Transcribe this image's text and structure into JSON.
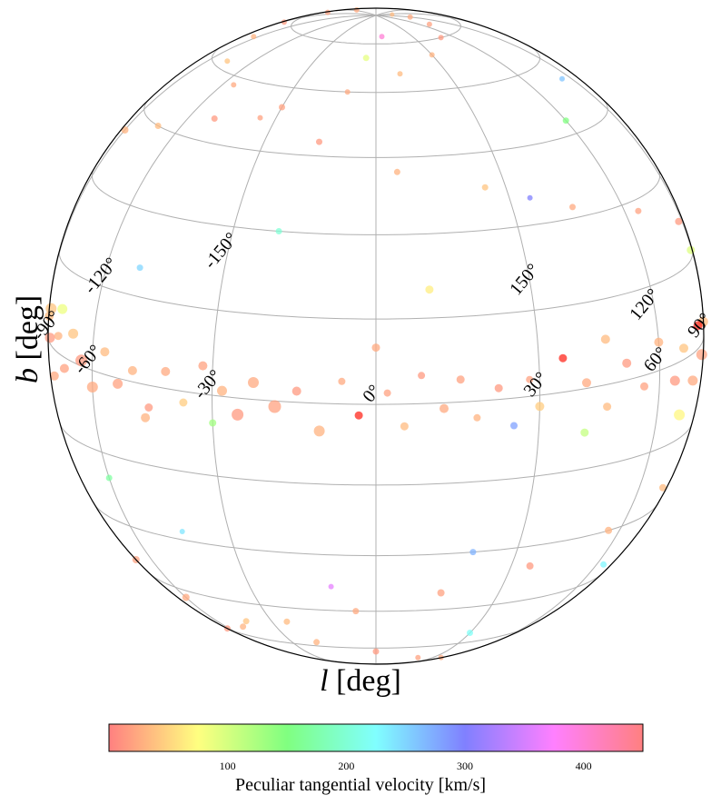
{
  "chart_data": {
    "type": "scatter",
    "projection": "orthographic sky map",
    "xlabel": {
      "symbol": "l",
      "unit": "[deg]"
    },
    "ylabel": {
      "symbol": "b",
      "unit": "[deg]"
    },
    "longitude_ticks": [
      "-150°",
      "-120°",
      "-90°",
      "-60°",
      "-30°",
      "0°",
      "30°",
      "60°",
      "90°",
      "120°",
      "150°"
    ],
    "longitude_values": [
      -150,
      -120,
      -90,
      -60,
      -30,
      0,
      30,
      60,
      90,
      120,
      150
    ],
    "latitude_gridlines": [
      -75,
      -60,
      -45,
      -30,
      -15,
      0,
      15,
      30,
      45,
      60,
      75
    ],
    "grid": true,
    "colorbar": {
      "label": "Peculiar tangential velocity [km/s]",
      "range": [
        0,
        450
      ],
      "ticks": [
        "100",
        "200",
        "300",
        "400"
      ],
      "tick_values": [
        100,
        200,
        300,
        400
      ],
      "colormap": [
        "#ff8080",
        "#ffff80",
        "#80ff80",
        "#80ffff",
        "#8080ff",
        "#ff80ff",
        "#ff8080"
      ]
    },
    "points": [
      [
        175,
        5,
        20,
        16
      ],
      [
        172,
        -8,
        25,
        15
      ],
      [
        168,
        3,
        15,
        14
      ],
      [
        165,
        -3,
        30,
        16
      ],
      [
        162,
        8,
        20,
        13
      ],
      [
        158,
        -6,
        10,
        15
      ],
      [
        155,
        2,
        35,
        14
      ],
      [
        150,
        -10,
        25,
        12
      ],
      [
        147,
        5,
        15,
        13
      ],
      [
        144,
        -2,
        40,
        14
      ],
      [
        140,
        7,
        20,
        12
      ],
      [
        136,
        -5,
        30,
        13
      ],
      [
        132,
        3,
        10,
        14
      ],
      [
        128,
        -8,
        25,
        12
      ],
      [
        124,
        1,
        20,
        13
      ],
      [
        120,
        6,
        35,
        12
      ],
      [
        116,
        -3,
        15,
        13
      ],
      [
        112,
        4,
        45,
        12
      ],
      [
        108,
        -6,
        20,
        11
      ],
      [
        104,
        2,
        30,
        13
      ],
      [
        100,
        -1,
        60,
        18
      ],
      [
        96,
        5,
        25,
        12
      ],
      [
        92,
        -4,
        15,
        13
      ],
      [
        88,
        3,
        35,
        11
      ],
      [
        84,
        -2,
        20,
        12
      ],
      [
        80,
        4,
        10,
        10
      ],
      [
        76,
        -5,
        25,
        11
      ],
      [
        70,
        2,
        40,
        10
      ],
      [
        66,
        -3,
        15,
        11
      ],
      [
        60,
        5,
        30,
        10
      ],
      [
        55,
        -2,
        20,
        9
      ],
      [
        50,
        3,
        15,
        10
      ],
      [
        45,
        -4,
        35,
        9
      ],
      [
        40,
        1,
        25,
        10
      ],
      [
        35,
        6,
        10,
        9
      ],
      [
        30,
        -2,
        45,
        10
      ],
      [
        28,
        3,
        20,
        8
      ],
      [
        25,
        -5,
        280,
        8
      ],
      [
        22,
        2,
        15,
        9
      ],
      [
        18,
        -3,
        30,
        8
      ],
      [
        15,
        4,
        20,
        9
      ],
      [
        12,
        -1,
        25,
        10
      ],
      [
        8,
        5,
        15,
        8
      ],
      [
        5,
        -4,
        35,
        9
      ],
      [
        2,
        2,
        20,
        8
      ],
      [
        -3,
        -2,
        10,
        9
      ],
      [
        -6,
        4,
        25,
        8
      ],
      [
        -10,
        -5,
        30,
        12
      ],
      [
        -14,
        2,
        15,
        10
      ],
      [
        -18,
        -1,
        20,
        14
      ],
      [
        -22,
        3,
        25,
        12
      ],
      [
        -25,
        -3,
        15,
        13
      ],
      [
        -28,
        1,
        30,
        11
      ],
      [
        -32,
        5,
        20,
        10
      ],
      [
        -36,
        -2,
        45,
        9
      ],
      [
        -40,
        3,
        25,
        10
      ],
      [
        -44,
        -4,
        15,
        9
      ],
      [
        -48,
        2,
        30,
        10
      ],
      [
        -52,
        -1,
        20,
        11
      ],
      [
        -56,
        4,
        35,
        10
      ],
      [
        -60,
        -3,
        25,
        12
      ],
      [
        -64,
        1,
        15,
        13
      ],
      [
        -68,
        5,
        40,
        11
      ],
      [
        -72,
        -2,
        20,
        10
      ],
      [
        -76,
        3,
        30,
        9
      ],
      [
        -80,
        -5,
        25,
        10
      ],
      [
        -84,
        1,
        15,
        11
      ],
      [
        -88,
        4,
        35,
        10
      ],
      [
        -92,
        -2,
        20,
        9
      ],
      [
        -96,
        3,
        30,
        10
      ],
      [
        -100,
        -4,
        25,
        11
      ],
      [
        -104,
        2,
        15,
        12
      ],
      [
        -108,
        -1,
        45,
        10
      ],
      [
        -112,
        5,
        20,
        11
      ],
      [
        -116,
        -3,
        30,
        12
      ],
      [
        -120,
        1,
        25,
        13
      ],
      [
        -124,
        4,
        15,
        12
      ],
      [
        -128,
        -2,
        35,
        13
      ],
      [
        -132,
        3,
        20,
        12
      ],
      [
        -136,
        -5,
        25,
        14
      ],
      [
        -140,
        1,
        30,
        13
      ],
      [
        -144,
        6,
        15,
        12
      ],
      [
        -148,
        -2,
        20,
        14
      ],
      [
        -152,
        3,
        40,
        13
      ],
      [
        -156,
        -4,
        25,
        15
      ],
      [
        -160,
        2,
        15,
        14
      ],
      [
        -164,
        -1,
        30,
        16
      ],
      [
        -168,
        4,
        20,
        15
      ],
      [
        -172,
        -3,
        25,
        16
      ],
      [
        -176,
        1,
        35,
        15
      ],
      [
        110,
        10,
        30,
        9
      ],
      [
        115,
        -12,
        20,
        10
      ],
      [
        125,
        15,
        40,
        8
      ],
      [
        130,
        -18,
        25,
        9
      ],
      [
        140,
        20,
        15,
        8
      ],
      [
        145,
        -22,
        35,
        9
      ],
      [
        150,
        25,
        20,
        8
      ],
      [
        155,
        -28,
        30,
        9
      ],
      [
        160,
        30,
        45,
        8
      ],
      [
        165,
        -35,
        25,
        10
      ],
      [
        135,
        12,
        150,
        9
      ],
      [
        118,
        -15,
        20,
        9
      ],
      [
        105,
        18,
        30,
        8
      ],
      [
        95,
        -20,
        25,
        9
      ],
      [
        85,
        22,
        15,
        8
      ],
      [
        75,
        -25,
        35,
        8
      ],
      [
        65,
        28,
        20,
        7
      ],
      [
        55,
        -30,
        30,
        8
      ],
      [
        45,
        32,
        25,
        7
      ],
      [
        35,
        -35,
        15,
        8
      ],
      [
        25,
        38,
        40,
        7
      ],
      [
        15,
        -40,
        20,
        8
      ],
      [
        5,
        42,
        30,
        7
      ],
      [
        -5,
        -45,
        25,
        7
      ],
      [
        -15,
        48,
        15,
        7
      ],
      [
        -25,
        -50,
        35,
        7
      ],
      [
        -35,
        52,
        20,
        6
      ],
      [
        -45,
        -55,
        30,
        7
      ],
      [
        -55,
        58,
        25,
        6
      ],
      [
        -65,
        -60,
        15,
        7
      ],
      [
        -75,
        62,
        40,
        6
      ],
      [
        -85,
        -65,
        20,
        6
      ],
      [
        -95,
        68,
        30,
        6
      ],
      [
        -105,
        -70,
        25,
        6
      ],
      [
        -115,
        72,
        15,
        6
      ],
      [
        -125,
        -75,
        35,
        6
      ],
      [
        -135,
        78,
        20,
        6
      ],
      [
        -145,
        -80,
        30,
        6
      ],
      [
        -155,
        82,
        25,
        6
      ],
      [
        -165,
        -84,
        15,
        6
      ],
      [
        -170,
        15,
        40,
        9
      ],
      [
        -160,
        -18,
        25,
        10
      ],
      [
        -150,
        22,
        35,
        9
      ],
      [
        -140,
        -25,
        20,
        10
      ],
      [
        -130,
        28,
        30,
        9
      ],
      [
        -120,
        -32,
        45,
        9
      ],
      [
        -110,
        35,
        25,
        8
      ],
      [
        -100,
        -38,
        15,
        9
      ],
      [
        -90,
        40,
        30,
        8
      ],
      [
        -80,
        -42,
        20,
        8
      ],
      [
        -70,
        45,
        35,
        7
      ],
      [
        -60,
        -48,
        25,
        8
      ],
      [
        -50,
        50,
        15,
        7
      ],
      [
        -40,
        -52,
        40,
        7
      ],
      [
        -30,
        55,
        20,
        7
      ],
      [
        -20,
        -58,
        30,
        7
      ],
      [
        -10,
        60,
        25,
        6
      ],
      [
        0,
        -62,
        15,
        7
      ],
      [
        10,
        65,
        35,
        6
      ],
      [
        20,
        -68,
        20,
        6
      ],
      [
        30,
        70,
        30,
        6
      ],
      [
        40,
        -72,
        25,
        6
      ],
      [
        50,
        75,
        15,
        6
      ],
      [
        60,
        -78,
        40,
        6
      ],
      [
        70,
        80,
        20,
        6
      ],
      [
        80,
        -82,
        30,
        6
      ],
      [
        90,
        84,
        25,
        6
      ],
      [
        100,
        -86,
        15,
        6
      ],
      [
        110,
        87,
        35,
        5
      ],
      [
        120,
        -88,
        20,
        5
      ],
      [
        170,
        -40,
        25,
        9
      ],
      [
        175,
        35,
        30,
        8
      ],
      [
        168,
        -50,
        15,
        9
      ],
      [
        172,
        45,
        20,
        8
      ],
      [
        178,
        -60,
        35,
        7
      ],
      [
        -178,
        40,
        25,
        8
      ],
      [
        -174,
        -45,
        20,
        9
      ],
      [
        -176,
        55,
        30,
        7
      ],
      [
        -172,
        -55,
        15,
        8
      ],
      [
        -168,
        62,
        25,
        7
      ],
      [
        160,
        -25,
        20,
        12
      ],
      [
        163,
        -30,
        30,
        11
      ],
      [
        150,
        40,
        15,
        10
      ],
      [
        145,
        -45,
        25,
        9
      ],
      [
        138,
        50,
        20,
        8
      ],
      [
        -165,
        -30,
        20,
        11
      ],
      [
        -162,
        28,
        25,
        10
      ],
      [
        -158,
        -40,
        30,
        9
      ],
      [
        -155,
        45,
        15,
        9
      ],
      [
        -150,
        -50,
        20,
        8
      ],
      [
        -30,
        -5,
        130,
        8
      ],
      [
        40,
        -8,
        110,
        9
      ],
      [
        -95,
        12,
        140,
        8
      ],
      [
        88,
        16,
        95,
        9
      ],
      [
        -60,
        -20,
        170,
        7
      ],
      [
        120,
        -35,
        180,
        8
      ],
      [
        -130,
        40,
        160,
        8
      ],
      [
        60,
        48,
        150,
        7
      ],
      [
        -20,
        30,
        200,
        7
      ],
      [
        30,
        -55,
        220,
        7
      ],
      [
        150,
        -15,
        75,
        14
      ],
      [
        -145,
        5,
        80,
        13
      ],
      [
        70,
        -10,
        70,
        12
      ],
      [
        -75,
        8,
        85,
        11
      ],
      [
        10,
        20,
        65,
        9
      ],
      [
        -5,
        70,
        90,
        7
      ],
      [
        100,
        -50,
        70,
        8
      ],
      [
        -110,
        -55,
        80,
        8
      ],
      [
        170,
        20,
        75,
        10
      ],
      [
        -170,
        -25,
        85,
        10
      ],
      [
        -42,
        -28,
        240,
        6
      ],
      [
        82,
        55,
        260,
        6
      ],
      [
        -120,
        18,
        320,
        6
      ],
      [
        35,
        35,
        300,
        6
      ],
      [
        130,
        -60,
        340,
        6
      ],
      [
        -10,
        -38,
        360,
        6
      ],
      [
        -160,
        -70,
        380,
        7
      ],
      [
        5,
        78,
        400,
        6
      ],
      [
        155,
        60,
        420,
        6
      ],
      [
        -95,
        -10,
        310,
        6
      ],
      [
        112,
        30,
        190,
        8
      ],
      [
        -115,
        15,
        210,
        7
      ],
      [
        65,
        -40,
        230,
        7
      ],
      [
        -50,
        20,
        250,
        7
      ],
      [
        20,
        -30,
        270,
        7
      ],
      [
        135,
        8,
        50,
        11
      ],
      [
        -135,
        -8,
        55,
        11
      ],
      [
        95,
        -5,
        45,
        12
      ],
      [
        -85,
        6,
        40,
        12
      ],
      [
        45,
        8,
        35,
        10
      ],
      [
        -45,
        -6,
        30,
        10
      ],
      [
        0,
        10,
        25,
        9
      ],
      [
        175,
        -20,
        45,
        9
      ],
      [
        -175,
        12,
        50,
        10
      ],
      [
        125,
        40,
        55,
        8
      ]
    ]
  }
}
